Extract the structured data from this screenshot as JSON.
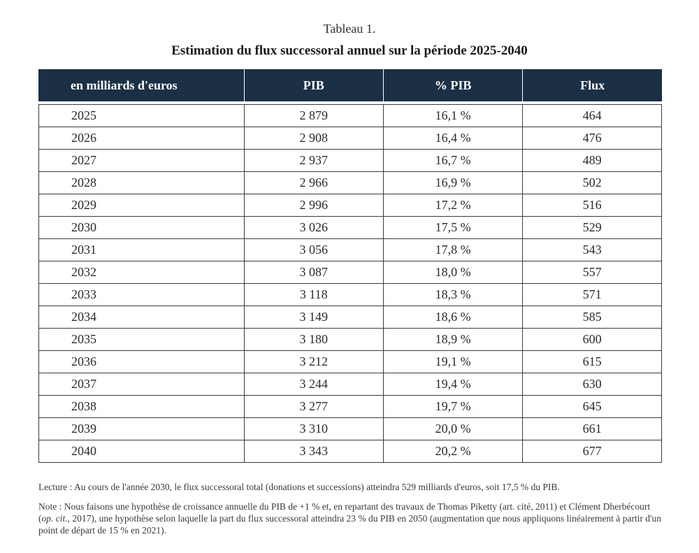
{
  "caption": "Tableau 1.",
  "title": "Estimation du flux successoral annuel sur la période 2025-2040",
  "table": {
    "headers": [
      "en milliards d'euros",
      "PIB",
      "% PIB",
      "Flux"
    ],
    "rows": [
      [
        "2025",
        "2 879",
        "16,1 %",
        "464"
      ],
      [
        "2026",
        "2 908",
        "16,4 %",
        "476"
      ],
      [
        "2027",
        "2 937",
        "16,7 %",
        "489"
      ],
      [
        "2028",
        "2 966",
        "16,9 %",
        "502"
      ],
      [
        "2029",
        "2 996",
        "17,2 %",
        "516"
      ],
      [
        "2030",
        "3 026",
        "17,5 %",
        "529"
      ],
      [
        "2031",
        "3 056",
        "17,8 %",
        "543"
      ],
      [
        "2032",
        "3 087",
        "18,0 %",
        "557"
      ],
      [
        "2033",
        "3 118",
        "18,3 %",
        "571"
      ],
      [
        "2034",
        "3 149",
        "18,6 %",
        "585"
      ],
      [
        "2035",
        "3 180",
        "18,9 %",
        "600"
      ],
      [
        "2036",
        "3 212",
        "19,1 %",
        "615"
      ],
      [
        "2037",
        "3 244",
        "19,4 %",
        "630"
      ],
      [
        "2038",
        "3 277",
        "19,7 %",
        "645"
      ],
      [
        "2039",
        "3 310",
        "20,0 %",
        "661"
      ],
      [
        "2040",
        "3 343",
        "20,2 %",
        "677"
      ]
    ]
  },
  "lecture": "Lecture : Au cours de l'année 2030, le flux successoral total (donations et successions) atteindra 529 milliards d'euros, soit 17,5 % du PIB.",
  "note": {
    "part1": "Note : Nous faisons une hypothèse de croissance annuelle du PIB de +1 % et, en repartant des travaux de Thomas Piketty (art. cité, 2011) et Clément Dherbécourt (",
    "italic": "op. cit.",
    "part2": ", 2017), une hypothèse selon laquelle la part du flux successoral atteindra 23 % du PIB en 2050 (augmentation que nous appliquons linéairement à partir d'un point de départ de 15 % en 2021)."
  },
  "colors": {
    "header_bg": "#1b2f45",
    "header_text": "#ffffff",
    "border": "#3a3a3a"
  }
}
